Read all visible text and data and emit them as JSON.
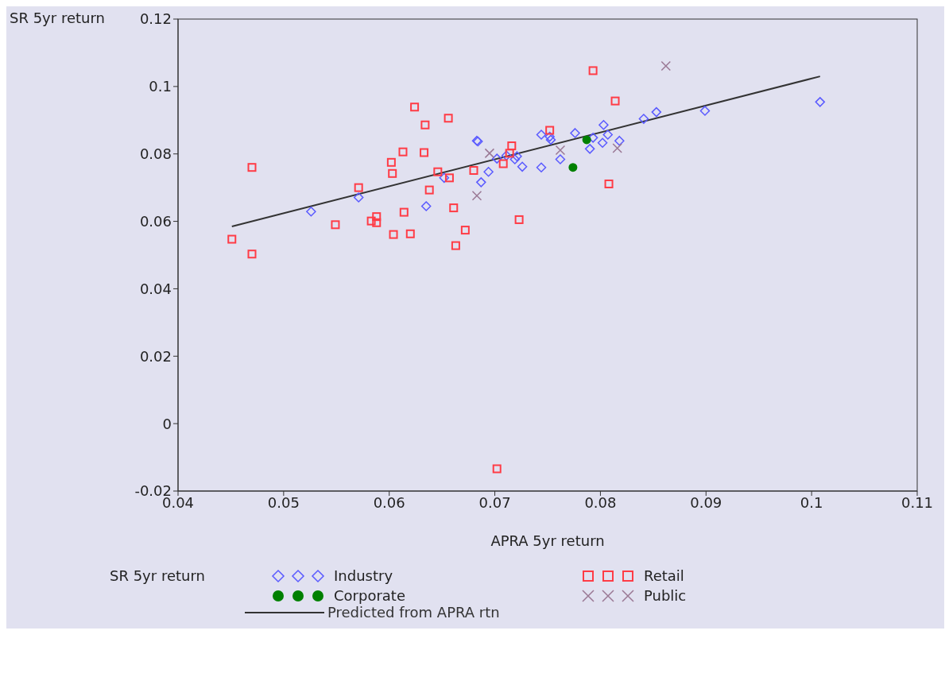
{
  "chart_data": {
    "type": "scatter",
    "xlabel": "APRA 5yr return",
    "ylabel": "SR 5yr return",
    "legend_title": "SR 5yr return",
    "legend": "bottom",
    "xlim": [
      0.04,
      0.11
    ],
    "xticks": [
      0.04,
      0.05,
      0.06,
      0.07,
      0.08,
      0.09,
      0.1,
      0.11
    ],
    "ylim": [
      -0.02,
      0.12
    ],
    "yticks": [
      -0.02,
      0,
      0.02,
      0.04,
      0.06,
      0.08,
      0.1,
      0.12
    ],
    "series": [
      {
        "name": "Industry",
        "color": "#5a5aff",
        "marker": "diamond",
        "x": [
          0.0526,
          0.0571,
          0.0635,
          0.0652,
          0.0683,
          0.0684,
          0.0687,
          0.0694,
          0.0702,
          0.0711,
          0.0719,
          0.0721,
          0.0726,
          0.0744,
          0.0744,
          0.0752,
          0.0753,
          0.0762,
          0.0776,
          0.079,
          0.0793,
          0.0802,
          0.0803,
          0.0807,
          0.0818,
          0.0841,
          0.0853,
          0.0899,
          0.1008
        ],
        "values": [
          0.0629,
          0.0671,
          0.0645,
          0.0729,
          0.0839,
          0.0837,
          0.0716,
          0.0747,
          0.0786,
          0.0795,
          0.0784,
          0.0793,
          0.0762,
          0.076,
          0.0857,
          0.0851,
          0.0842,
          0.0784,
          0.0862,
          0.0815,
          0.0848,
          0.0833,
          0.0886,
          0.0857,
          0.0839,
          0.0904,
          0.0924,
          0.0928,
          0.0954
        ]
      },
      {
        "name": "Retail",
        "color": "#ff3c46",
        "marker": "square",
        "x": [
          0.0451,
          0.047,
          0.047,
          0.0549,
          0.0571,
          0.0583,
          0.0588,
          0.0588,
          0.0602,
          0.0603,
          0.0604,
          0.0613,
          0.0614,
          0.062,
          0.0624,
          0.0633,
          0.0634,
          0.0638,
          0.0646,
          0.0656,
          0.0657,
          0.0661,
          0.0663,
          0.0672,
          0.068,
          0.0702,
          0.0708,
          0.0714,
          0.0716,
          0.0723,
          0.0752,
          0.0793,
          0.0808,
          0.0814
        ],
        "values": [
          0.0547,
          0.076,
          0.0503,
          0.059,
          0.07,
          0.0601,
          0.0614,
          0.0596,
          0.0775,
          0.0742,
          0.0561,
          0.0806,
          0.0627,
          0.0563,
          0.0939,
          0.0804,
          0.0886,
          0.0693,
          0.0747,
          0.0906,
          0.0729,
          0.064,
          0.0528,
          0.0574,
          0.0751,
          -0.0134,
          0.0771,
          0.0802,
          0.0824,
          0.0605,
          0.087,
          0.1047,
          0.0711,
          0.0957
        ]
      },
      {
        "name": "Corporate",
        "color": "#008000",
        "marker": "circle",
        "x": [
          0.0774,
          0.0787
        ],
        "values": [
          0.076,
          0.0842
        ]
      },
      {
        "name": "Public",
        "color": "#9a7894",
        "marker": "cross",
        "x": [
          0.0695,
          0.0683,
          0.0762,
          0.0816,
          0.0862
        ],
        "values": [
          0.0802,
          0.0676,
          0.0811,
          0.0817,
          0.1061
        ]
      },
      {
        "name": "Predicted from APRA rtn",
        "type": "line",
        "color": "#333333",
        "marker": "none",
        "line_style": "solid",
        "x": [
          0.0451,
          0.1008
        ],
        "values": [
          0.0585,
          0.103
        ]
      }
    ]
  }
}
